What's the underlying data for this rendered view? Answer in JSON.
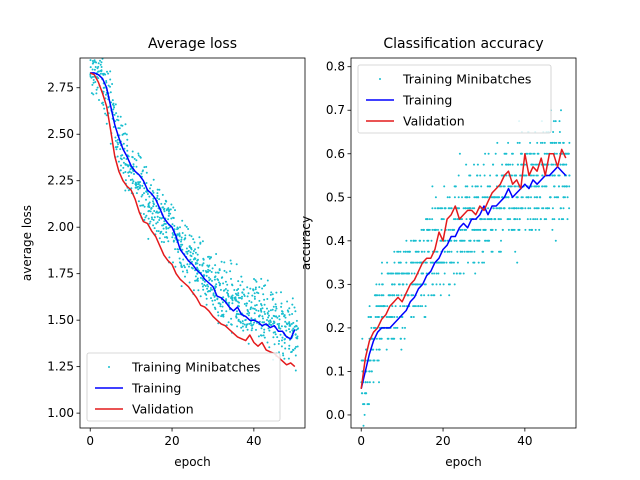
{
  "chart_data": [
    {
      "type": "line",
      "title": "Average loss",
      "xlabel": "epoch",
      "ylabel": "average loss",
      "xlim": [
        -2.5,
        52.5
      ],
      "ylim": [
        0.92,
        2.91
      ],
      "xticks": [
        0,
        20,
        40
      ],
      "yticks": [
        1.0,
        1.25,
        1.5,
        1.75,
        2.0,
        2.25,
        2.5,
        2.75
      ],
      "ytick_labels": [
        "1.00",
        "1.25",
        "1.50",
        "1.75",
        "2.00",
        "2.25",
        "2.50",
        "2.75"
      ],
      "legend_position": "lower-left",
      "series": [
        {
          "name": "Training Minibatches",
          "style": "points",
          "color": "#17becf",
          "trend": [
            [
              0,
              2.84
            ],
            [
              2,
              2.81
            ],
            [
              4,
              2.72
            ],
            [
              6,
              2.5
            ],
            [
              8,
              2.36
            ],
            [
              10,
              2.3
            ],
            [
              12,
              2.23
            ],
            [
              14,
              2.15
            ],
            [
              16,
              2.1
            ],
            [
              18,
              2.03
            ],
            [
              20,
              1.97
            ],
            [
              22,
              1.88
            ],
            [
              24,
              1.84
            ],
            [
              26,
              1.8
            ],
            [
              28,
              1.73
            ],
            [
              30,
              1.69
            ],
            [
              32,
              1.65
            ],
            [
              34,
              1.62
            ],
            [
              36,
              1.58
            ],
            [
              38,
              1.57
            ],
            [
              40,
              1.55
            ],
            [
              42,
              1.52
            ],
            [
              44,
              1.49
            ],
            [
              46,
              1.46
            ],
            [
              48,
              1.44
            ],
            [
              50,
              1.43
            ]
          ],
          "spread": 0.12,
          "points_per_epoch": 19
        },
        {
          "name": "Training",
          "style": "line",
          "color": "#0000ff",
          "x": [
            0,
            1,
            2,
            3,
            4,
            5,
            6,
            7,
            8,
            9,
            10,
            11,
            12,
            13,
            14,
            15,
            16,
            17,
            18,
            19,
            20,
            21,
            22,
            23,
            24,
            25,
            26,
            27,
            28,
            29,
            30,
            31,
            32,
            33,
            34,
            35,
            36,
            37,
            38,
            39,
            40,
            41,
            42,
            43,
            44,
            45,
            46,
            47,
            48,
            49,
            50
          ],
          "y": [
            2.83,
            2.83,
            2.82,
            2.8,
            2.75,
            2.65,
            2.55,
            2.48,
            2.42,
            2.38,
            2.33,
            2.3,
            2.28,
            2.25,
            2.2,
            2.18,
            2.15,
            2.1,
            2.05,
            2.02,
            2.0,
            1.95,
            1.88,
            1.85,
            1.82,
            1.8,
            1.77,
            1.75,
            1.72,
            1.7,
            1.68,
            1.63,
            1.62,
            1.6,
            1.57,
            1.55,
            1.57,
            1.53,
            1.52,
            1.5,
            1.5,
            1.49,
            1.47,
            1.48,
            1.46,
            1.47,
            1.44,
            1.44,
            1.41,
            1.4,
            1.45
          ]
        },
        {
          "name": "Validation",
          "style": "line",
          "color": "#e41a1c",
          "x": [
            0,
            1,
            2,
            3,
            4,
            5,
            6,
            7,
            8,
            9,
            10,
            11,
            12,
            13,
            14,
            15,
            16,
            17,
            18,
            19,
            20,
            21,
            22,
            23,
            24,
            25,
            26,
            27,
            28,
            29,
            30,
            31,
            32,
            33,
            34,
            35,
            36,
            37,
            38,
            39,
            40,
            41,
            42,
            43,
            44,
            45,
            46,
            47,
            48,
            49,
            50
          ],
          "y": [
            2.83,
            2.82,
            2.78,
            2.72,
            2.65,
            2.52,
            2.38,
            2.3,
            2.25,
            2.22,
            2.2,
            2.15,
            2.08,
            2.03,
            2.02,
            1.98,
            1.95,
            1.9,
            1.85,
            1.82,
            1.8,
            1.75,
            1.72,
            1.7,
            1.68,
            1.65,
            1.62,
            1.58,
            1.57,
            1.55,
            1.52,
            1.5,
            1.48,
            1.47,
            1.45,
            1.43,
            1.41,
            1.4,
            1.39,
            1.42,
            1.38,
            1.36,
            1.38,
            1.34,
            1.33,
            1.32,
            1.3,
            1.28,
            1.26,
            1.27,
            1.25
          ]
        }
      ]
    },
    {
      "type": "line",
      "title": "Classification accuracy",
      "xlabel": "epoch",
      "ylabel": "accuracy",
      "xlim": [
        -2.5,
        52.5
      ],
      "ylim": [
        -0.03,
        0.82
      ],
      "xticks": [
        0,
        20,
        40
      ],
      "yticks": [
        0.0,
        0.1,
        0.2,
        0.3,
        0.4,
        0.5,
        0.6,
        0.7,
        0.8
      ],
      "ytick_labels": [
        "0.0",
        "0.1",
        "0.2",
        "0.3",
        "0.4",
        "0.5",
        "0.6",
        "0.7",
        "0.8"
      ],
      "legend_position": "upper-left",
      "series": [
        {
          "name": "Training Minibatches",
          "style": "points",
          "color": "#17becf",
          "trend": [
            [
              0,
              0.06
            ],
            [
              2,
              0.15
            ],
            [
              4,
              0.2
            ],
            [
              6,
              0.24
            ],
            [
              8,
              0.27
            ],
            [
              10,
              0.29
            ],
            [
              12,
              0.32
            ],
            [
              14,
              0.34
            ],
            [
              16,
              0.36
            ],
            [
              18,
              0.38
            ],
            [
              20,
              0.4
            ],
            [
              22,
              0.42
            ],
            [
              24,
              0.43
            ],
            [
              26,
              0.45
            ],
            [
              28,
              0.46
            ],
            [
              30,
              0.47
            ],
            [
              32,
              0.48
            ],
            [
              34,
              0.5
            ],
            [
              36,
              0.51
            ],
            [
              38,
              0.52
            ],
            [
              40,
              0.53
            ],
            [
              42,
              0.54
            ],
            [
              44,
              0.55
            ],
            [
              46,
              0.55
            ],
            [
              48,
              0.56
            ],
            [
              50,
              0.56
            ]
          ],
          "spread": 0.09,
          "points_per_epoch": 19,
          "quantum": 0.025
        },
        {
          "name": "Training",
          "style": "line",
          "color": "#0000ff",
          "x": [
            0,
            1,
            2,
            3,
            4,
            5,
            6,
            7,
            8,
            9,
            10,
            11,
            12,
            13,
            14,
            15,
            16,
            17,
            18,
            19,
            20,
            21,
            22,
            23,
            24,
            25,
            26,
            27,
            28,
            29,
            30,
            31,
            32,
            33,
            34,
            35,
            36,
            37,
            38,
            39,
            40,
            41,
            42,
            43,
            44,
            45,
            46,
            47,
            48,
            49,
            50
          ],
          "y": [
            0.06,
            0.1,
            0.14,
            0.17,
            0.19,
            0.2,
            0.2,
            0.2,
            0.21,
            0.22,
            0.23,
            0.24,
            0.26,
            0.27,
            0.29,
            0.3,
            0.32,
            0.33,
            0.35,
            0.36,
            0.38,
            0.39,
            0.41,
            0.41,
            0.43,
            0.44,
            0.43,
            0.45,
            0.45,
            0.46,
            0.48,
            0.46,
            0.48,
            0.48,
            0.49,
            0.5,
            0.52,
            0.5,
            0.51,
            0.52,
            0.53,
            0.52,
            0.54,
            0.53,
            0.54,
            0.55,
            0.55,
            0.56,
            0.57,
            0.56,
            0.55
          ]
        },
        {
          "name": "Validation",
          "style": "line",
          "color": "#e41a1c",
          "x": [
            0,
            1,
            2,
            3,
            4,
            5,
            6,
            7,
            8,
            9,
            10,
            11,
            12,
            13,
            14,
            15,
            16,
            17,
            18,
            19,
            20,
            21,
            22,
            23,
            24,
            25,
            26,
            27,
            28,
            29,
            30,
            31,
            32,
            33,
            34,
            35,
            36,
            37,
            38,
            39,
            40,
            41,
            42,
            43,
            44,
            45,
            46,
            47,
            48,
            49,
            50
          ],
          "y": [
            0.06,
            0.13,
            0.17,
            0.19,
            0.2,
            0.22,
            0.23,
            0.25,
            0.26,
            0.27,
            0.26,
            0.28,
            0.3,
            0.31,
            0.33,
            0.35,
            0.36,
            0.36,
            0.38,
            0.42,
            0.4,
            0.45,
            0.46,
            0.48,
            0.45,
            0.46,
            0.47,
            0.47,
            0.46,
            0.48,
            0.47,
            0.49,
            0.51,
            0.52,
            0.53,
            0.55,
            0.56,
            0.53,
            0.54,
            0.52,
            0.6,
            0.55,
            0.57,
            0.56,
            0.59,
            0.55,
            0.6,
            0.6,
            0.57,
            0.61,
            0.59
          ]
        }
      ]
    }
  ]
}
